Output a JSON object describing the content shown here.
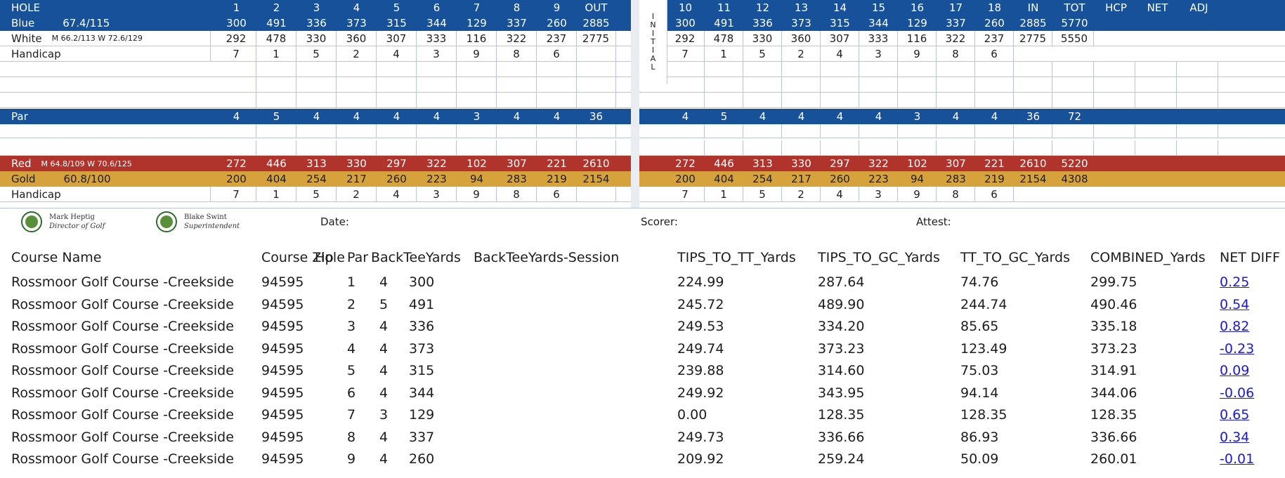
{
  "scorecard": {
    "header": {
      "label": "HOLE",
      "front": [
        "1",
        "2",
        "3",
        "4",
        "5",
        "6",
        "7",
        "8",
        "9",
        "OUT"
      ],
      "back": [
        "10",
        "11",
        "12",
        "13",
        "14",
        "15",
        "16",
        "17",
        "18",
        "IN",
        "TOT",
        "HCP",
        "NET",
        "ADJ"
      ]
    },
    "initial_label": [
      "I",
      "N",
      "I",
      "T",
      "I",
      "A",
      "L"
    ],
    "rows": [
      {
        "key": "blue",
        "name": "Blue",
        "rating": "67.4/115",
        "front": [
          "300",
          "491",
          "336",
          "373",
          "315",
          "344",
          "129",
          "337",
          "260",
          "2885"
        ],
        "back": [
          "300",
          "491",
          "336",
          "373",
          "315",
          "344",
          "129",
          "337",
          "260",
          "2885",
          "5770"
        ]
      },
      {
        "key": "white",
        "name": "White",
        "rating": "M 66.2/113 W 72.6/129",
        "front": [
          "292",
          "478",
          "330",
          "360",
          "307",
          "333",
          "116",
          "322",
          "237",
          "2775"
        ],
        "back": [
          "292",
          "478",
          "330",
          "360",
          "307",
          "333",
          "116",
          "322",
          "237",
          "2775",
          "5550"
        ]
      },
      {
        "key": "hcp",
        "name": "Handicap",
        "rating": "",
        "front": [
          "7",
          "1",
          "5",
          "2",
          "4",
          "3",
          "9",
          "8",
          "6",
          ""
        ],
        "back": [
          "7",
          "1",
          "5",
          "2",
          "4",
          "3",
          "9",
          "8",
          "6"
        ]
      },
      {
        "key": "par",
        "name": "Par",
        "rating": "",
        "front": [
          "4",
          "5",
          "4",
          "4",
          "4",
          "4",
          "3",
          "4",
          "4",
          "36"
        ],
        "back": [
          "4",
          "5",
          "4",
          "4",
          "4",
          "4",
          "3",
          "4",
          "4",
          "36",
          "72"
        ]
      },
      {
        "key": "red",
        "name": "Red",
        "rating": "M 64.8/109 W 70.6/125",
        "front": [
          "272",
          "446",
          "313",
          "330",
          "297",
          "322",
          "102",
          "307",
          "221",
          "2610"
        ],
        "back": [
          "272",
          "446",
          "313",
          "330",
          "297",
          "322",
          "102",
          "307",
          "221",
          "2610",
          "5220"
        ]
      },
      {
        "key": "gold",
        "name": "Gold",
        "rating": "60.8/100",
        "front": [
          "200",
          "404",
          "254",
          "217",
          "260",
          "223",
          "94",
          "283",
          "219",
          "2154"
        ],
        "back": [
          "200",
          "404",
          "254",
          "217",
          "260",
          "223",
          "94",
          "283",
          "219",
          "2154",
          "4308"
        ]
      },
      {
        "key": "hcp2",
        "name": "Handicap",
        "rating": "",
        "front": [
          "7",
          "1",
          "5",
          "2",
          "4",
          "3",
          "9",
          "8",
          "6",
          ""
        ],
        "back": [
          "7",
          "1",
          "5",
          "2",
          "4",
          "3",
          "9",
          "8",
          "6"
        ]
      }
    ],
    "signatures": {
      "director_name": "Mark Heptig",
      "director_role": "Director of Golf",
      "super_name": "Blake Swint",
      "super_role": "Superintendent",
      "date_label": "Date:",
      "scorer_label": "Scorer:",
      "attest_label": "Attest:"
    },
    "colors": {
      "blue": "#16519a",
      "red": "#b0332c",
      "gold": "#d6a23c"
    }
  },
  "table": {
    "headers": [
      "Course Name",
      "Course Zip",
      "Hole",
      "Par",
      "BackTeeYards",
      "BackTeeYards-Session",
      "TIPS_TO_TT_Yards",
      "TIPS_TO_GC_Yards",
      "TT_TO_GC_Yards",
      "COMBINED_Yards",
      "NET DIFF"
    ],
    "rows": [
      [
        "Rossmoor Golf Course -Creekside",
        "94595",
        "1",
        "4",
        "300",
        "",
        "224.99",
        "287.64",
        "74.76",
        "299.75",
        "0.25"
      ],
      [
        "Rossmoor Golf Course -Creekside",
        "94595",
        "2",
        "5",
        "491",
        "",
        "245.72",
        "489.90",
        "244.74",
        "490.46",
        "0.54"
      ],
      [
        "Rossmoor Golf Course -Creekside",
        "94595",
        "3",
        "4",
        "336",
        "",
        "249.53",
        "334.20",
        "85.65",
        "335.18",
        "0.82"
      ],
      [
        "Rossmoor Golf Course -Creekside",
        "94595",
        "4",
        "4",
        "373",
        "",
        "249.74",
        "373.23",
        "123.49",
        "373.23",
        "-0.23"
      ],
      [
        "Rossmoor Golf Course -Creekside",
        "94595",
        "5",
        "4",
        "315",
        "",
        "239.88",
        "314.60",
        "75.03",
        "314.91",
        "0.09"
      ],
      [
        "Rossmoor Golf Course -Creekside",
        "94595",
        "6",
        "4",
        "344",
        "",
        "249.92",
        "343.95",
        "94.14",
        "344.06",
        "-0.06"
      ],
      [
        "Rossmoor Golf Course -Creekside",
        "94595",
        "7",
        "3",
        "129",
        "",
        "0.00",
        "128.35",
        "128.35",
        "128.35",
        "0.65"
      ],
      [
        "Rossmoor Golf Course -Creekside",
        "94595",
        "8",
        "4",
        "337",
        "",
        "249.73",
        "336.66",
        "86.93",
        "336.66",
        "0.34"
      ],
      [
        "Rossmoor Golf Course -Creekside",
        "94595",
        "9",
        "4",
        "260",
        "",
        "209.92",
        "259.24",
        "50.09",
        "260.01",
        "-0.01"
      ]
    ]
  }
}
